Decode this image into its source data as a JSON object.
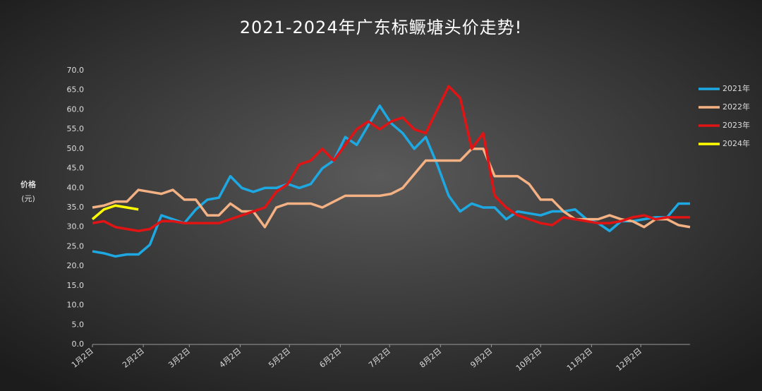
{
  "chart_data": {
    "type": "line",
    "title": "2021-2024年广东标鳜塘头价走势!",
    "y_label": "价格",
    "y_unit": "(元)",
    "x": [
      0,
      7,
      14,
      21,
      28,
      35,
      42,
      49,
      56,
      63,
      70,
      77,
      84,
      91,
      98,
      105,
      112,
      119,
      126,
      133,
      140,
      147,
      154,
      161,
      168,
      175,
      182,
      189,
      196,
      203,
      210,
      217,
      224,
      231,
      238,
      245,
      252,
      259,
      266,
      273,
      280,
      287,
      294,
      301,
      308,
      315,
      322,
      329,
      336,
      343,
      350,
      357,
      364
    ],
    "xlim": [
      0,
      364
    ],
    "xticks": [
      {
        "value": 0,
        "label": "1月2日"
      },
      {
        "value": 31,
        "label": "2月2日"
      },
      {
        "value": 59,
        "label": "3月2日"
      },
      {
        "value": 90,
        "label": "4月2日"
      },
      {
        "value": 120,
        "label": "5月2日"
      },
      {
        "value": 151,
        "label": "6月2日"
      },
      {
        "value": 181,
        "label": "7月2日"
      },
      {
        "value": 212,
        "label": "8月2日"
      },
      {
        "value": 243,
        "label": "9月2日"
      },
      {
        "value": 273,
        "label": "10月2日"
      },
      {
        "value": 304,
        "label": "11月2日"
      },
      {
        "value": 334,
        "label": "12月2日"
      }
    ],
    "ylim": [
      0,
      70
    ],
    "yticks": [
      {
        "value": 0,
        "label": "0.0"
      },
      {
        "value": 5,
        "label": "5.0"
      },
      {
        "value": 10,
        "label": "10.0"
      },
      {
        "value": 15,
        "label": "15.0"
      },
      {
        "value": 20,
        "label": "20.0"
      },
      {
        "value": 25,
        "label": "25.0"
      },
      {
        "value": 30,
        "label": "30.0"
      },
      {
        "value": 35,
        "label": "35.0"
      },
      {
        "value": 40,
        "label": "40.0"
      },
      {
        "value": 45,
        "label": "45.0"
      },
      {
        "value": 50,
        "label": "50.0"
      },
      {
        "value": 55,
        "label": "55.0"
      },
      {
        "value": 60,
        "label": "60.0"
      },
      {
        "value": 65,
        "label": "65.0"
      },
      {
        "value": 70,
        "label": "70.0"
      }
    ],
    "legend": "right",
    "series": [
      {
        "name": "2021年",
        "color": "#1ea8e2",
        "values": [
          23.8,
          23.3,
          22.5,
          23,
          23,
          25.5,
          33,
          32,
          31,
          34.5,
          37,
          37.5,
          43,
          40,
          39,
          40,
          40,
          41,
          40,
          41,
          45,
          47,
          53,
          51,
          56,
          61,
          56.5,
          54,
          50,
          53,
          46,
          38,
          34,
          36,
          35,
          35,
          32,
          34,
          33.5,
          33,
          34,
          34,
          34.5,
          32,
          31,
          29,
          31.5,
          31.5,
          32,
          32.5,
          32.5,
          36,
          36
        ]
      },
      {
        "name": "2022年",
        "color": "#f4b183",
        "values": [
          35,
          35.5,
          36.5,
          36.5,
          39.5,
          39,
          38.5,
          39.5,
          37,
          37,
          33,
          33,
          36,
          34,
          34,
          30,
          35,
          36,
          36,
          36,
          35,
          36.5,
          38,
          38,
          38,
          38,
          38.5,
          40,
          43.5,
          47,
          47,
          47,
          47,
          50,
          50,
          43,
          43,
          43,
          41,
          37,
          37,
          34,
          32,
          32,
          32,
          33,
          32,
          31.5,
          30,
          32,
          32,
          30.5,
          30
        ]
      },
      {
        "name": "2023年",
        "color": "#e01414",
        "values": [
          31,
          31.5,
          30,
          29.5,
          29,
          29.5,
          31.5,
          31.5,
          31,
          31,
          31,
          31,
          32,
          33,
          34,
          35,
          39,
          41,
          46,
          47,
          50,
          47,
          51,
          55,
          57,
          55,
          57,
          58,
          55,
          54,
          60,
          66,
          63,
          50,
          54,
          38,
          35,
          33,
          32,
          31,
          30.5,
          32.5,
          32,
          31.5,
          31,
          31,
          31.5,
          32.5,
          33,
          32,
          32.5,
          32.5,
          32.5
        ]
      },
      {
        "name": "2024年",
        "color": "#ffff00",
        "values": [
          32,
          34.5,
          35.5,
          35,
          34.5,
          null,
          null,
          null,
          null,
          null,
          null,
          null,
          null,
          null,
          null,
          null,
          null,
          null,
          null,
          null,
          null,
          null,
          null,
          null,
          null,
          null,
          null,
          null,
          null,
          null,
          null,
          null,
          null,
          null,
          null,
          null,
          null,
          null,
          null,
          null,
          null,
          null,
          null,
          null,
          null,
          null,
          null,
          null,
          null,
          null,
          null,
          null,
          null
        ]
      }
    ]
  }
}
